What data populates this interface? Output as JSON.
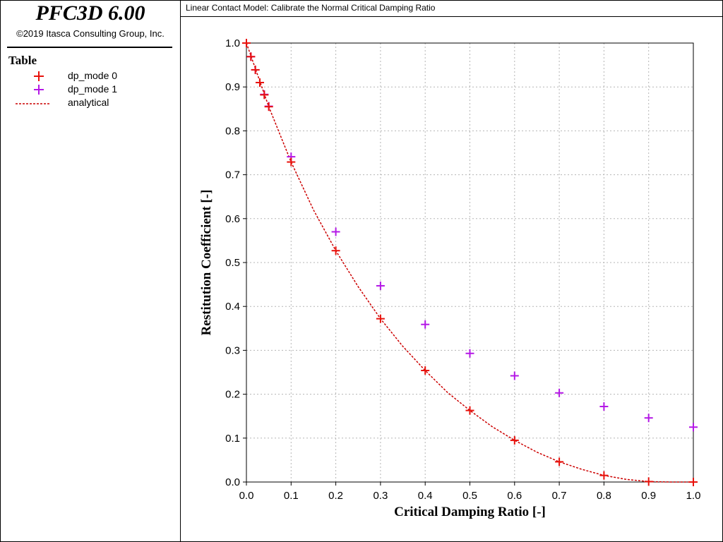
{
  "app": {
    "title": "PFC3D 6.00",
    "copyright": "©2019 Itasca Consulting Group, Inc."
  },
  "legend": {
    "title": "Table",
    "items": [
      {
        "label": "dp_mode 0",
        "color": "#e8120c",
        "symbol": "plus"
      },
      {
        "label": "dp_mode 1",
        "color": "#b418e6",
        "symbol": "plus"
      },
      {
        "label": "analytical",
        "color": "#cc0000",
        "symbol": "dashed-line"
      }
    ]
  },
  "header": {
    "title": "Linear Contact Model: Calibrate the Normal Critical Damping Ratio"
  },
  "chart_data": {
    "type": "scatter",
    "title": "Linear Contact Model: Calibrate the Normal Critical Damping Ratio",
    "xlabel": "Critical Damping Ratio [-]",
    "ylabel": "Restitution Coefficient [-]",
    "xlim": [
      0,
      1
    ],
    "ylim": [
      0,
      1
    ],
    "xticks": [
      0.0,
      0.1,
      0.2,
      0.3,
      0.4,
      0.5,
      0.6,
      0.7,
      0.8,
      0.9,
      1.0
    ],
    "yticks": [
      0.0,
      0.1,
      0.2,
      0.3,
      0.4,
      0.5,
      0.6,
      0.7,
      0.8,
      0.9,
      1.0
    ],
    "grid": true,
    "legend_position": "left-panel",
    "series": [
      {
        "name": "dp_mode 0",
        "kind": "markers",
        "color": "#e8120c",
        "x": [
          0.0,
          0.01,
          0.02,
          0.03,
          0.04,
          0.05,
          0.1,
          0.2,
          0.3,
          0.4,
          0.5,
          0.6,
          0.7,
          0.8,
          0.9,
          1.0
        ],
        "y": [
          1.0,
          0.969,
          0.939,
          0.91,
          0.882,
          0.855,
          0.729,
          0.527,
          0.372,
          0.254,
          0.163,
          0.095,
          0.046,
          0.015,
          0.001,
          0.0
        ]
      },
      {
        "name": "dp_mode 1",
        "kind": "markers",
        "color": "#b418e6",
        "x": [
          0.0,
          0.01,
          0.02,
          0.03,
          0.04,
          0.05,
          0.1,
          0.2,
          0.3,
          0.4,
          0.5,
          0.6,
          0.7,
          0.8,
          0.9,
          1.0
        ],
        "y": [
          1.0,
          0.969,
          0.939,
          0.91,
          0.883,
          0.856,
          0.741,
          0.57,
          0.447,
          0.359,
          0.293,
          0.242,
          0.203,
          0.172,
          0.146,
          0.125
        ]
      },
      {
        "name": "analytical",
        "kind": "dashed-line",
        "color": "#cc0000",
        "x": [
          0.0,
          0.05,
          0.1,
          0.15,
          0.2,
          0.25,
          0.3,
          0.35,
          0.4,
          0.45,
          0.5,
          0.55,
          0.6,
          0.65,
          0.7,
          0.75,
          0.8,
          0.85,
          0.9,
          0.95,
          1.0
        ],
        "y": [
          1.0,
          0.855,
          0.729,
          0.62,
          0.527,
          0.445,
          0.372,
          0.309,
          0.254,
          0.204,
          0.163,
          0.126,
          0.095,
          0.068,
          0.046,
          0.029,
          0.015,
          0.006,
          0.001,
          0.0,
          0.0
        ]
      }
    ]
  }
}
